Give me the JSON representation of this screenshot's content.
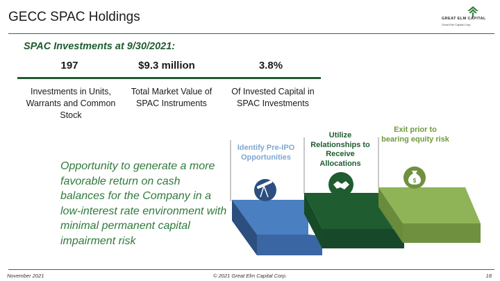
{
  "header": {
    "title": "GECC SPAC Holdings",
    "logo_text": "GREAT ELM CAPITAL",
    "logo_tagline": "Great Elm Capital Corp."
  },
  "section": {
    "subtitle": "SPAC Investments at 9/30/2021:"
  },
  "stats": [
    {
      "value": "197",
      "description": "Investments in Units, Warrants and Common Stock"
    },
    {
      "value": "$9.3 million",
      "description": "Total Market Value of SPAC Instruments"
    },
    {
      "value": "3.8%",
      "description": "Of Invested Capital in SPAC Investments"
    }
  ],
  "opportunity_text": "Opportunity to generate a more favorable return on cash balances for the Company in a low-interest rate environment with minimal permanent capital impairment risk",
  "steps": [
    {
      "label": "Identify Pre-IPO Opportunities",
      "icon": "telescope-icon",
      "color": "#4a7fc1"
    },
    {
      "label": "Utilize Relationships to Receive Allocations",
      "icon": "handshake-icon",
      "color": "#1f5c30"
    },
    {
      "label": "Exit prior to bearing equity risk",
      "icon": "money-bag-icon",
      "color": "#8fb458"
    }
  ],
  "footer": {
    "date": "November 2021",
    "copyright": "© 2021 Great Elm Capital Corp.",
    "page": "18"
  }
}
